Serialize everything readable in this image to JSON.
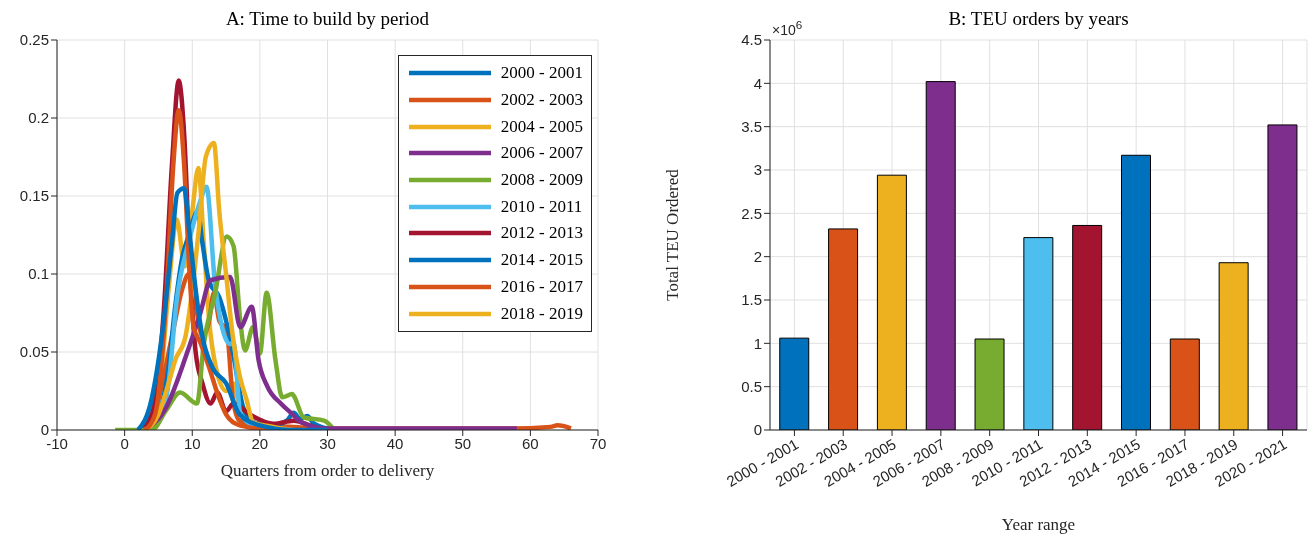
{
  "chart_data": [
    {
      "type": "line",
      "title": "A: Time to build by period",
      "xlabel": "Quarters from order to delivery",
      "xlim": [
        -10,
        70
      ],
      "xticks": [
        -10,
        0,
        10,
        20,
        30,
        40,
        50,
        60,
        70
      ],
      "ylim": [
        0,
        0.25
      ],
      "yticks": [
        0,
        0.05,
        0.1,
        0.15,
        0.2,
        0.25
      ],
      "grid": true,
      "legend": "top right",
      "series": [
        {
          "name": "2000 - 2001",
          "color": "#0072bd",
          "x": [
            2,
            4,
            5.5,
            7,
            7.8,
            8.8,
            9.5,
            10.5,
            11.5,
            13,
            15,
            17,
            20,
            25,
            30
          ],
          "values": [
            0,
            0.02,
            0.06,
            0.12,
            0.152,
            0.155,
            0.13,
            0.09,
            0.06,
            0.04,
            0.03,
            0.01,
            0.003,
            0,
            0
          ]
        },
        {
          "name": "2002 - 2003",
          "color": "#d95319",
          "x": [
            3,
            4.5,
            6.2,
            7.2,
            8,
            8.8,
            9.5,
            10.2,
            11.2,
            12.5,
            14,
            15,
            16,
            18,
            22
          ],
          "values": [
            0,
            0.01,
            0.088,
            0.17,
            0.205,
            0.17,
            0.109,
            0.066,
            0.056,
            0.04,
            0.02,
            0.01,
            0.005,
            0.002,
            0
          ]
        },
        {
          "name": "2004 - 2005",
          "color": "#edb120",
          "x": [
            3,
            5,
            6.5,
            7.5,
            9,
            10,
            11,
            12,
            13.2,
            14,
            15,
            16,
            17,
            18,
            19,
            22,
            25
          ],
          "values": [
            0,
            0.01,
            0.03,
            0.045,
            0.06,
            0.09,
            0.13,
            0.175,
            0.184,
            0.14,
            0.1,
            0.06,
            0.035,
            0.02,
            0.005,
            0.002,
            0
          ]
        },
        {
          "name": "2006 - 2007",
          "color": "#7e2f8e",
          "x": [
            3,
            6.2,
            9.2,
            11.2,
            12.7,
            15.6,
            17.1,
            18.8,
            19.8,
            21.1,
            23.1,
            24.6,
            26.1,
            30,
            58
          ],
          "values": [
            0,
            0.015,
            0.049,
            0.075,
            0.096,
            0.098,
            0.066,
            0.079,
            0.045,
            0.028,
            0.017,
            0.011,
            0.005,
            0.001,
            0.001
          ]
        },
        {
          "name": "2008 - 2009",
          "color": "#77ac30",
          "x": [
            -1.4,
            4,
            6.2,
            8.2,
            10.7,
            11.7,
            13.4,
            15.1,
            16.1,
            17.1,
            17.8,
            19,
            20,
            21,
            22.3,
            23.3,
            24.8,
            25,
            26.5,
            29.5,
            31
          ],
          "values": [
            0,
            0,
            0.013,
            0.024,
            0.017,
            0.055,
            0.088,
            0.124,
            0.118,
            0.07,
            0.051,
            0.066,
            0.049,
            0.088,
            0.045,
            0.021,
            0.023,
            0.022,
            0.008,
            0.006,
            0
          ]
        },
        {
          "name": "2010 - 2011",
          "color": "#4dbeee",
          "x": [
            3,
            5,
            6.5,
            7.7,
            9.7,
            11.2,
            12.1,
            13.4,
            15.6,
            16.1,
            17.1,
            19,
            22
          ],
          "values": [
            0,
            0.005,
            0.03,
            0.083,
            0.124,
            0.147,
            0.156,
            0.092,
            0.055,
            0.056,
            0.011,
            0.003,
            0
          ]
        },
        {
          "name": "2012 - 2013",
          "color": "#a2142f",
          "x": [
            2,
            4,
            5.8,
            7,
            8,
            8.8,
            9.7,
            10.5,
            11.5,
            12.7,
            13.7,
            15,
            16.1,
            18.5,
            22,
            25,
            28,
            30
          ],
          "values": [
            0,
            0.01,
            0.077,
            0.17,
            0.224,
            0.19,
            0.1,
            0.05,
            0.03,
            0.017,
            0.024,
            0.012,
            0.017,
            0.01,
            0.004,
            0.006,
            0.002,
            0
          ]
        },
        {
          "name": "2014 - 2015",
          "color": "#0072bd",
          "x": [
            3,
            5,
            6.5,
            7.5,
            8.5,
            9.5,
            10.8,
            11.5,
            12.5,
            14,
            15,
            16,
            17.5,
            19,
            22,
            24,
            25,
            26,
            27,
            28,
            31
          ],
          "values": [
            0,
            0.01,
            0.04,
            0.08,
            0.11,
            0.125,
            0.14,
            0.12,
            0.095,
            0.085,
            0.07,
            0.05,
            0.015,
            0.005,
            0.003,
            0.006,
            0.011,
            0.007,
            0.009,
            0.004,
            0
          ]
        },
        {
          "name": "2016 - 2017",
          "color": "#d95319",
          "x": [
            3,
            5,
            7,
            8.5,
            9.5,
            10.5,
            11.5,
            12.5,
            13.2,
            14,
            15.1,
            16,
            17,
            20,
            25,
            30,
            40,
            57,
            63,
            64,
            66
          ],
          "values": [
            0,
            0.02,
            0.06,
            0.09,
            0.1,
            0.08,
            0.06,
            0.07,
            0.088,
            0.07,
            0.064,
            0.02,
            0.006,
            0.003,
            0.002,
            0.001,
            0.001,
            0.001,
            0.002,
            0.003,
            0.001
          ]
        },
        {
          "name": "2018 - 2019",
          "color": "#edb120",
          "x": [
            3,
            5,
            6.5,
            7.7,
            8.9,
            10,
            10.9,
            11.7,
            12.5,
            13.5,
            15,
            16,
            17,
            18,
            22
          ],
          "values": [
            0,
            0.02,
            0.09,
            0.135,
            0.105,
            0.14,
            0.168,
            0.12,
            0.07,
            0.04,
            0.025,
            0.03,
            0.015,
            0.003,
            0.002
          ]
        }
      ]
    },
    {
      "type": "bar",
      "title": "B: TEU orders by years",
      "xlabel": "Year range",
      "ylabel": "Total TEU Ordered",
      "annotations": [
        "×10$^{6}$"
      ],
      "categories": [
        "2000 - 2001",
        "2002 - 2003",
        "2004 - 2005",
        "2006 - 2007",
        "2008 - 2009",
        "2010 - 2011",
        "2012 - 2013",
        "2014 - 2015",
        "2016 - 2017",
        "2018 - 2019",
        "2020 - 2021"
      ],
      "values": [
        1.06,
        2.32,
        2.94,
        4.02,
        1.05,
        2.22,
        2.36,
        3.17,
        1.05,
        1.93,
        3.52
      ],
      "colors": [
        "#0072bd",
        "#d95319",
        "#edb120",
        "#7e2f8e",
        "#77ac30",
        "#4dbeee",
        "#a2142f",
        "#0072bd",
        "#d95319",
        "#edb120",
        "#7e2f8e"
      ],
      "ylim": [
        0,
        4.5
      ],
      "yticks": [
        0,
        0.5,
        1,
        1.5,
        2,
        2.5,
        3,
        3.5,
        4,
        4.5
      ],
      "grid": true
    }
  ]
}
